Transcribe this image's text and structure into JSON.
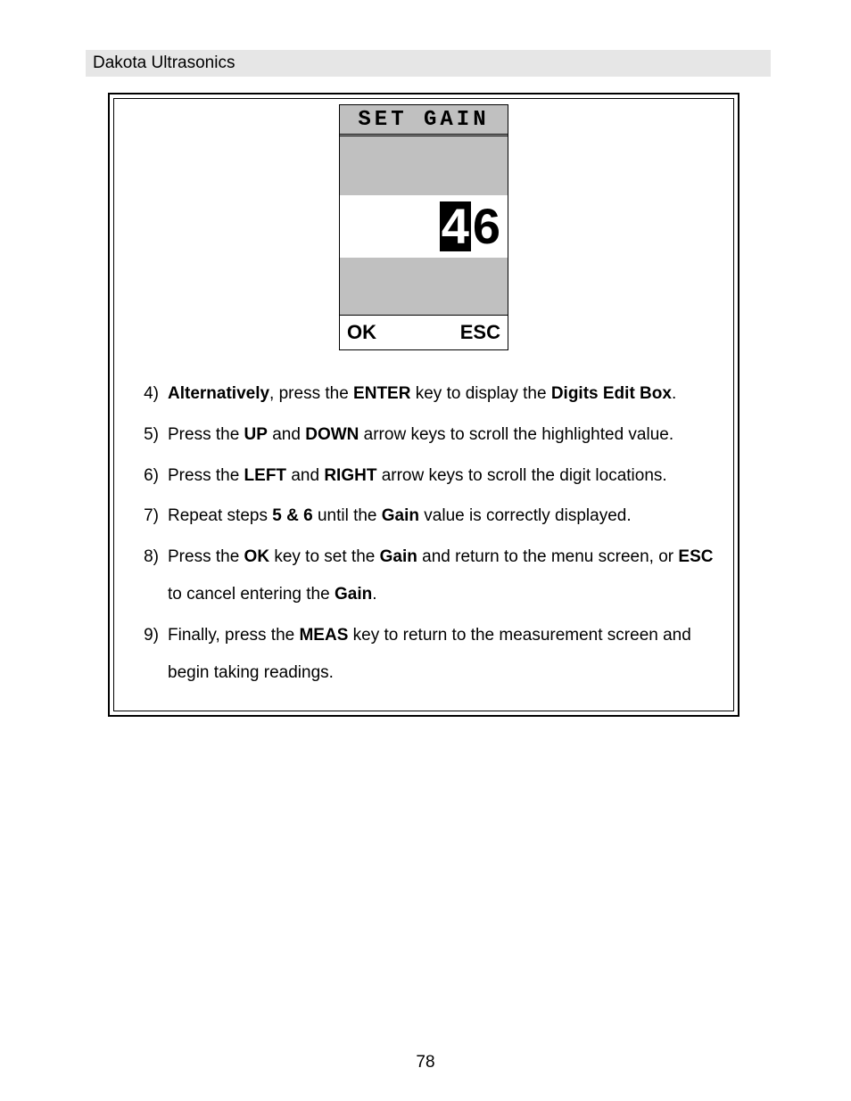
{
  "header": {
    "text": "Dakota Ultrasonics"
  },
  "lcd": {
    "title": "SET GAIN",
    "digit_highlighted": "4",
    "digit_normal": "6",
    "ok_label": "OK",
    "esc_label": "ESC",
    "bg_color": "#c0c0c0",
    "value_bg": "#ffffff"
  },
  "steps": {
    "s4": {
      "num": "4)",
      "t1": "Alternatively",
      "t2": ", press the ",
      "t3": "ENTER",
      "t4": " key to display the ",
      "t5": "Digits Edit Box",
      "t6": "."
    },
    "s5": {
      "num": "5)",
      "t1": "Press the ",
      "t2": "UP",
      "t3": " and ",
      "t4": "DOWN",
      "t5": " arrow keys to scroll the highlighted value."
    },
    "s6": {
      "num": "6)",
      "t1": "Press the ",
      "t2": "LEFT",
      "t3": " and ",
      "t4": "RIGHT",
      "t5": " arrow keys to scroll the digit locations."
    },
    "s7": {
      "num": "7)",
      "t1": "Repeat steps ",
      "t2": "5 & 6",
      "t3": " until the ",
      "t4": "Gain",
      "t5": " value is correctly displayed."
    },
    "s8": {
      "num": "8)",
      "t1": "Press the ",
      "t2": "OK",
      "t3": " key to set the ",
      "t4": "Gain",
      "t5": " and return to the menu screen, or ",
      "t6": "ESC",
      "t7": " to cancel entering the ",
      "t8": "Gain",
      "t9": "."
    },
    "s9": {
      "num": "9)",
      "t1": "Finally, press the ",
      "t2": "MEAS",
      "t3": " key to return to the measurement screen and begin taking readings."
    }
  },
  "page_number": "78"
}
